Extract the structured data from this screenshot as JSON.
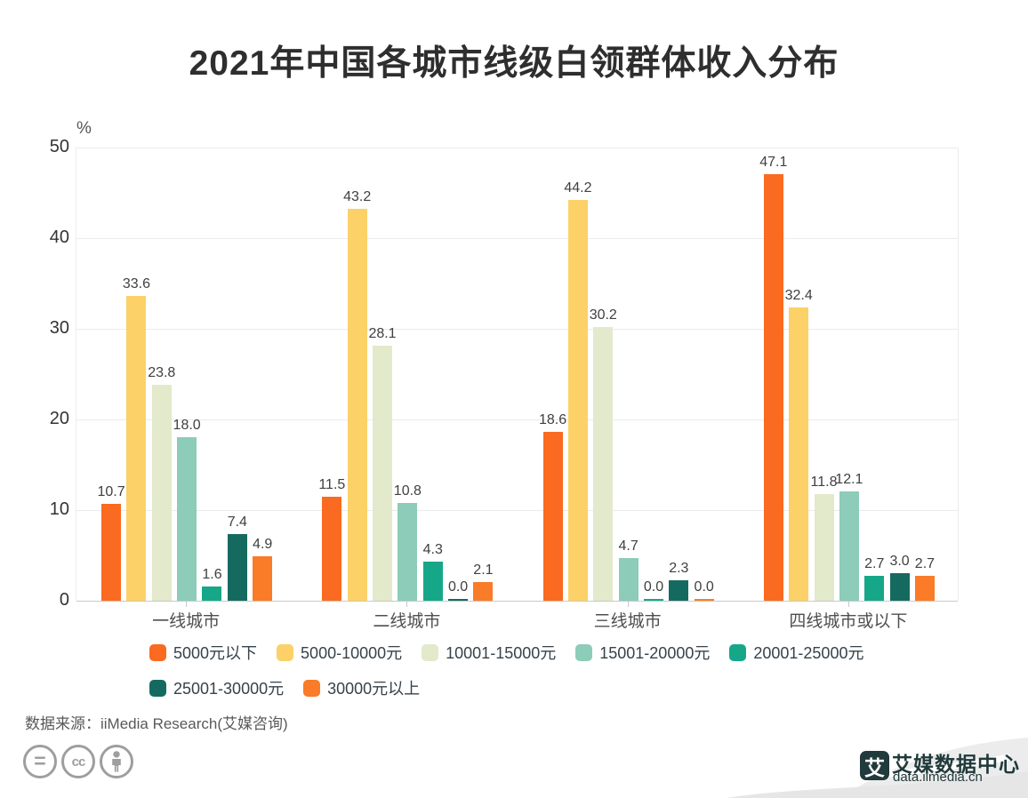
{
  "title": "2021年中国各城市线级白领群体收入分布",
  "chart_data": {
    "type": "bar",
    "title": "2021年中国各城市线级白领群体收入分布",
    "ylabel": "%",
    "ylim": [
      0,
      50
    ],
    "yticks": [
      0,
      10,
      20,
      30,
      40,
      50
    ],
    "grid": true,
    "legend_position": "bottom",
    "value_label_decimals": 1,
    "categories": [
      "一线城市",
      "二线城市",
      "三线城市",
      "四线城市或以下"
    ],
    "series": [
      {
        "name": "5000元以下",
        "color": "#fa6a21",
        "values": [
          10.7,
          11.5,
          18.6,
          47.1
        ]
      },
      {
        "name": "5000-10000元",
        "color": "#fbd168",
        "values": [
          33.6,
          43.2,
          44.2,
          32.4
        ]
      },
      {
        "name": "10001-15000元",
        "color": "#e3e9cb",
        "values": [
          23.8,
          28.1,
          30.2,
          11.8
        ]
      },
      {
        "name": "15001-20000元",
        "color": "#8cccb8",
        "values": [
          18.0,
          10.8,
          4.7,
          12.1
        ]
      },
      {
        "name": "20001-25000元",
        "color": "#16a789",
        "values": [
          1.6,
          4.3,
          0.0,
          2.7
        ]
      },
      {
        "name": "25001-30000元",
        "color": "#156a60",
        "values": [
          7.4,
          0.0,
          2.3,
          3.0
        ]
      },
      {
        "name": "30000元以上",
        "color": "#fa7b28",
        "values": [
          4.9,
          2.1,
          0.0,
          2.7
        ]
      }
    ]
  },
  "unit_label": "%",
  "source": {
    "label": "数据来源：iiMedia Research(艾媒咨询)"
  },
  "footer_icons": {
    "names": [
      "equals-icon",
      "cc-icon",
      "person-icon"
    ],
    "color": "#9e9e9e"
  },
  "branding": {
    "logo_mark": "艾",
    "name": "艾媒数据中心",
    "url": "data.iimedia.cn",
    "color": "#213a3b",
    "ribbon_color": "#ececec"
  }
}
